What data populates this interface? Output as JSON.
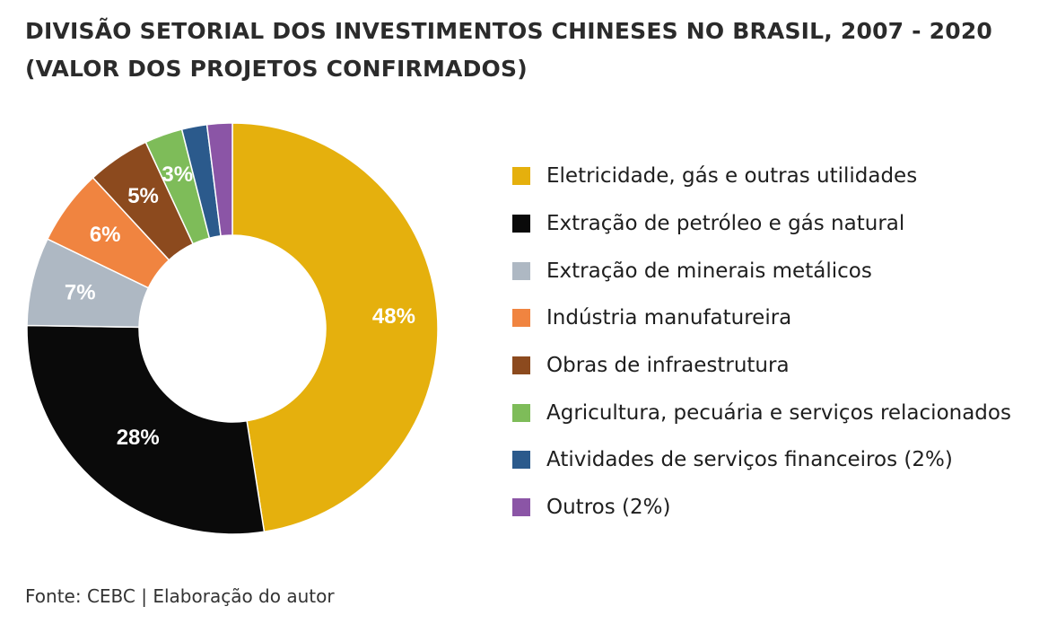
{
  "title": {
    "line1": "DIVISÃO SETORIAL DOS INVESTIMENTOS CHINESES NO BRASIL, 2007 - 2020",
    "line2": "(VALOR DOS PROJETOS CONFIRMADOS)"
  },
  "source": "Fonte: CEBC | Elaboração do autor",
  "chart_data": {
    "type": "pie",
    "variant": "donut",
    "legend_position": "right",
    "unit": "%",
    "categories": [
      "Eletricidade, gás e outras utilidades",
      "Extração de petróleo e gás natural",
      "Extração de minerais metálicos",
      "Indústria manufatureira",
      "Obras de infraestrutura",
      "Agricultura, pecuária e serviços relacionados",
      "Atividades de serviços financeiros (2%)",
      "Outros (2%)"
    ],
    "values": [
      48,
      28,
      7,
      6,
      5,
      3,
      2,
      2
    ],
    "slice_labels": [
      "48%",
      "28%",
      "7%",
      "6%",
      "5%",
      "3%",
      "",
      ""
    ],
    "colors": [
      "#E5B00D",
      "#0A0A0A",
      "#AEB8C3",
      "#F08440",
      "#8C4A1E",
      "#7EBC59",
      "#2B5A8C",
      "#8B55A6"
    ]
  }
}
